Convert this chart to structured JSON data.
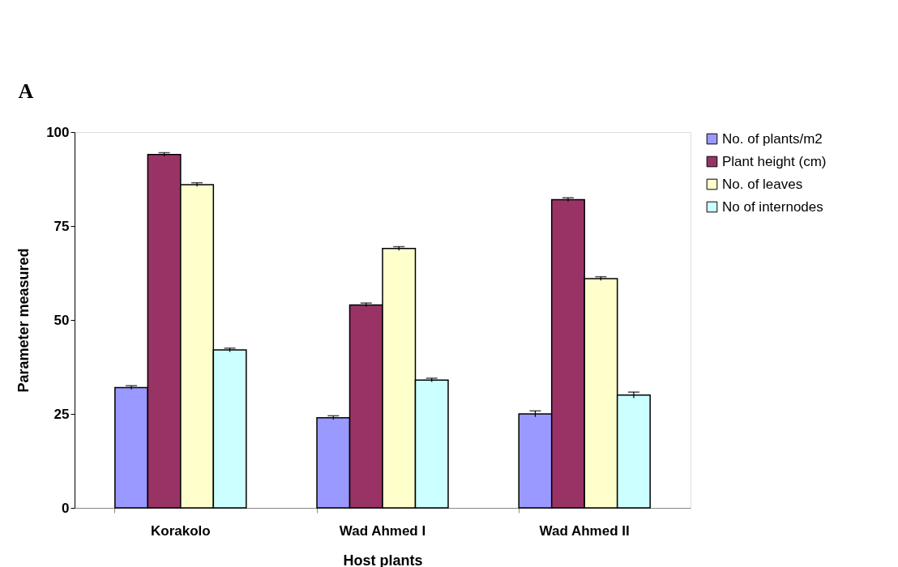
{
  "chart_data": {
    "type": "bar",
    "xlabel": "Host plants",
    "ylabel": "Parameter measured",
    "annotations": [
      "A"
    ],
    "categories": [
      "Korakolo",
      "Wad Ahmed I",
      "Wad Ahmed II"
    ],
    "series": [
      {
        "name": "No. of plants/m2",
        "color": "#9999ff",
        "values": [
          32,
          24,
          25
        ],
        "errors": [
          0.5,
          0.5,
          0.8
        ]
      },
      {
        "name": "Plant height (cm)",
        "color": "#993366",
        "values": [
          94,
          54,
          82
        ],
        "errors": [
          0.5,
          0.5,
          0.5
        ]
      },
      {
        "name": "No. of leaves",
        "color": "#ffffcc",
        "values": [
          86,
          69,
          61
        ],
        "errors": [
          0.5,
          0.5,
          0.5
        ]
      },
      {
        "name": "No of internodes",
        "color": "#ccffff",
        "values": [
          42,
          34,
          30
        ],
        "errors": [
          0.5,
          0.5,
          0.8
        ]
      }
    ],
    "ylim": [
      0,
      100
    ],
    "yticks": [
      0,
      25,
      50,
      75,
      100
    ],
    "grid": false,
    "legend": "top right"
  }
}
